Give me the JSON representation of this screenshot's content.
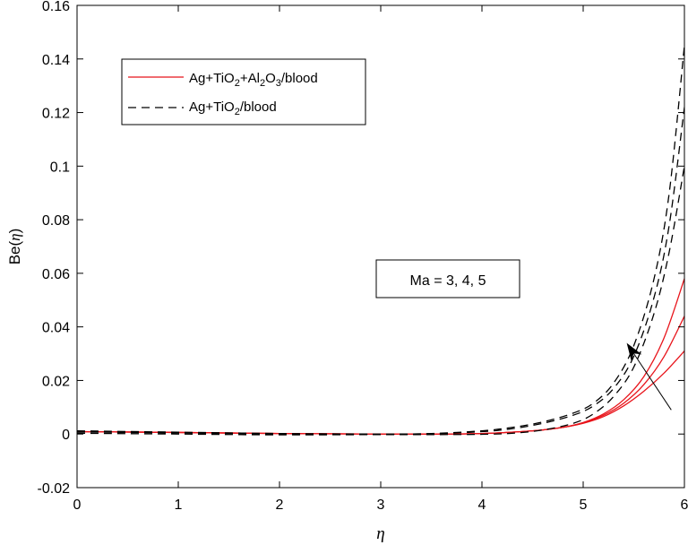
{
  "chart_data": {
    "type": "line",
    "xlabel": "η",
    "ylabel_prefix": "Be(",
    "ylabel_var": "η",
    "ylabel_suffix": ")",
    "xlim": [
      0,
      6
    ],
    "ylim": [
      -0.02,
      0.16
    ],
    "xticks": [
      0,
      1,
      2,
      3,
      4,
      5,
      6
    ],
    "yticks": [
      -0.02,
      0,
      0.02,
      0.04,
      0.06,
      0.08,
      0.1,
      0.12,
      0.14,
      0.16
    ],
    "ytick_labels": [
      "-0.02",
      "0",
      "0.02",
      "0.04",
      "0.06",
      "0.08",
      "0.1",
      "0.12",
      "0.14",
      "0.16"
    ],
    "grid": false,
    "legend_position": "top-left",
    "legend": [
      {
        "parts": [
          [
            "Ag+TiO",
            ""
          ],
          [
            "2",
            "sub"
          ],
          [
            "+Al",
            ""
          ],
          [
            "2",
            "sub"
          ],
          [
            "O",
            ""
          ],
          [
            "3",
            "sub"
          ],
          [
            "/blood",
            ""
          ]
        ],
        "color": "#e8141b",
        "dash": "solid"
      },
      {
        "parts": [
          [
            "Ag+TiO",
            ""
          ],
          [
            "2",
            "sub"
          ],
          [
            "/blood",
            ""
          ]
        ],
        "color": "#000000",
        "dash": "dashed"
      }
    ],
    "annotation": {
      "text": "Ma = 3, 4, 5",
      "arrow_from": [
        5.87,
        0.009
      ],
      "arrow_to": [
        5.43,
        0.034
      ]
    },
    "series": [
      {
        "group": "hybrid",
        "color": "#e8141b",
        "dash": "solid",
        "x": [
          0,
          1,
          2,
          3,
          3.5,
          4,
          4.5,
          4.8,
          5,
          5.2,
          5.4,
          5.6,
          5.8,
          6
        ],
        "y": [
          0.0009,
          0.0006,
          0.0002,
          0,
          0,
          0.0002,
          0.0012,
          0.0025,
          0.004,
          0.0065,
          0.0105,
          0.016,
          0.0228,
          0.031
        ]
      },
      {
        "group": "hybrid",
        "color": "#e8141b",
        "dash": "solid",
        "x": [
          0,
          1,
          2,
          3,
          3.5,
          4,
          4.5,
          4.8,
          5,
          5.2,
          5.4,
          5.6,
          5.8,
          6
        ],
        "y": [
          0.0009,
          0.0006,
          0.0002,
          0,
          0,
          0.0002,
          0.0012,
          0.0025,
          0.0042,
          0.007,
          0.0115,
          0.0185,
          0.029,
          0.044
        ]
      },
      {
        "group": "hybrid",
        "color": "#e8141b",
        "dash": "solid",
        "x": [
          0,
          1,
          2,
          3,
          3.5,
          4,
          4.5,
          4.8,
          5,
          5.2,
          5.4,
          5.6,
          5.8,
          6
        ],
        "y": [
          0.0009,
          0.0006,
          0.0002,
          0,
          0,
          0.0002,
          0.0012,
          0.0025,
          0.0043,
          0.0075,
          0.0128,
          0.0215,
          0.036,
          0.058
        ]
      },
      {
        "group": "nanofluid",
        "color": "#000000",
        "dash": "dashed",
        "x": [
          0,
          1,
          2,
          3,
          3.5,
          4,
          4.3,
          4.6,
          4.9,
          5.1,
          5.3,
          5.5,
          5.7,
          5.85,
          6
        ],
        "y": [
          0.0003,
          0,
          -0.0003,
          -0.0002,
          -0.0002,
          -0.0001,
          0.0003,
          0.0015,
          0.004,
          0.0075,
          0.014,
          0.025,
          0.045,
          0.068,
          0.1
        ]
      },
      {
        "group": "nanofluid",
        "color": "#000000",
        "dash": "dashed",
        "x": [
          0,
          1,
          2,
          3,
          3.5,
          4,
          4.3,
          4.6,
          4.9,
          5.1,
          5.3,
          5.5,
          5.7,
          5.85,
          6
        ],
        "y": [
          0.0008,
          0.0004,
          0,
          -0.0001,
          0.0001,
          0.0009,
          0.002,
          0.004,
          0.007,
          0.0105,
          0.017,
          0.029,
          0.051,
          0.078,
          0.122
        ]
      },
      {
        "group": "nanofluid",
        "color": "#000000",
        "dash": "dashed",
        "x": [
          0,
          1,
          2,
          3,
          3.5,
          4,
          4.3,
          4.6,
          4.9,
          5.1,
          5.3,
          5.5,
          5.7,
          5.85,
          6
        ],
        "y": [
          0.0012,
          0.0007,
          0.0002,
          0,
          0.0002,
          0.0012,
          0.0025,
          0.0045,
          0.0078,
          0.0115,
          0.019,
          0.033,
          0.058,
          0.09,
          0.145
        ]
      }
    ]
  }
}
